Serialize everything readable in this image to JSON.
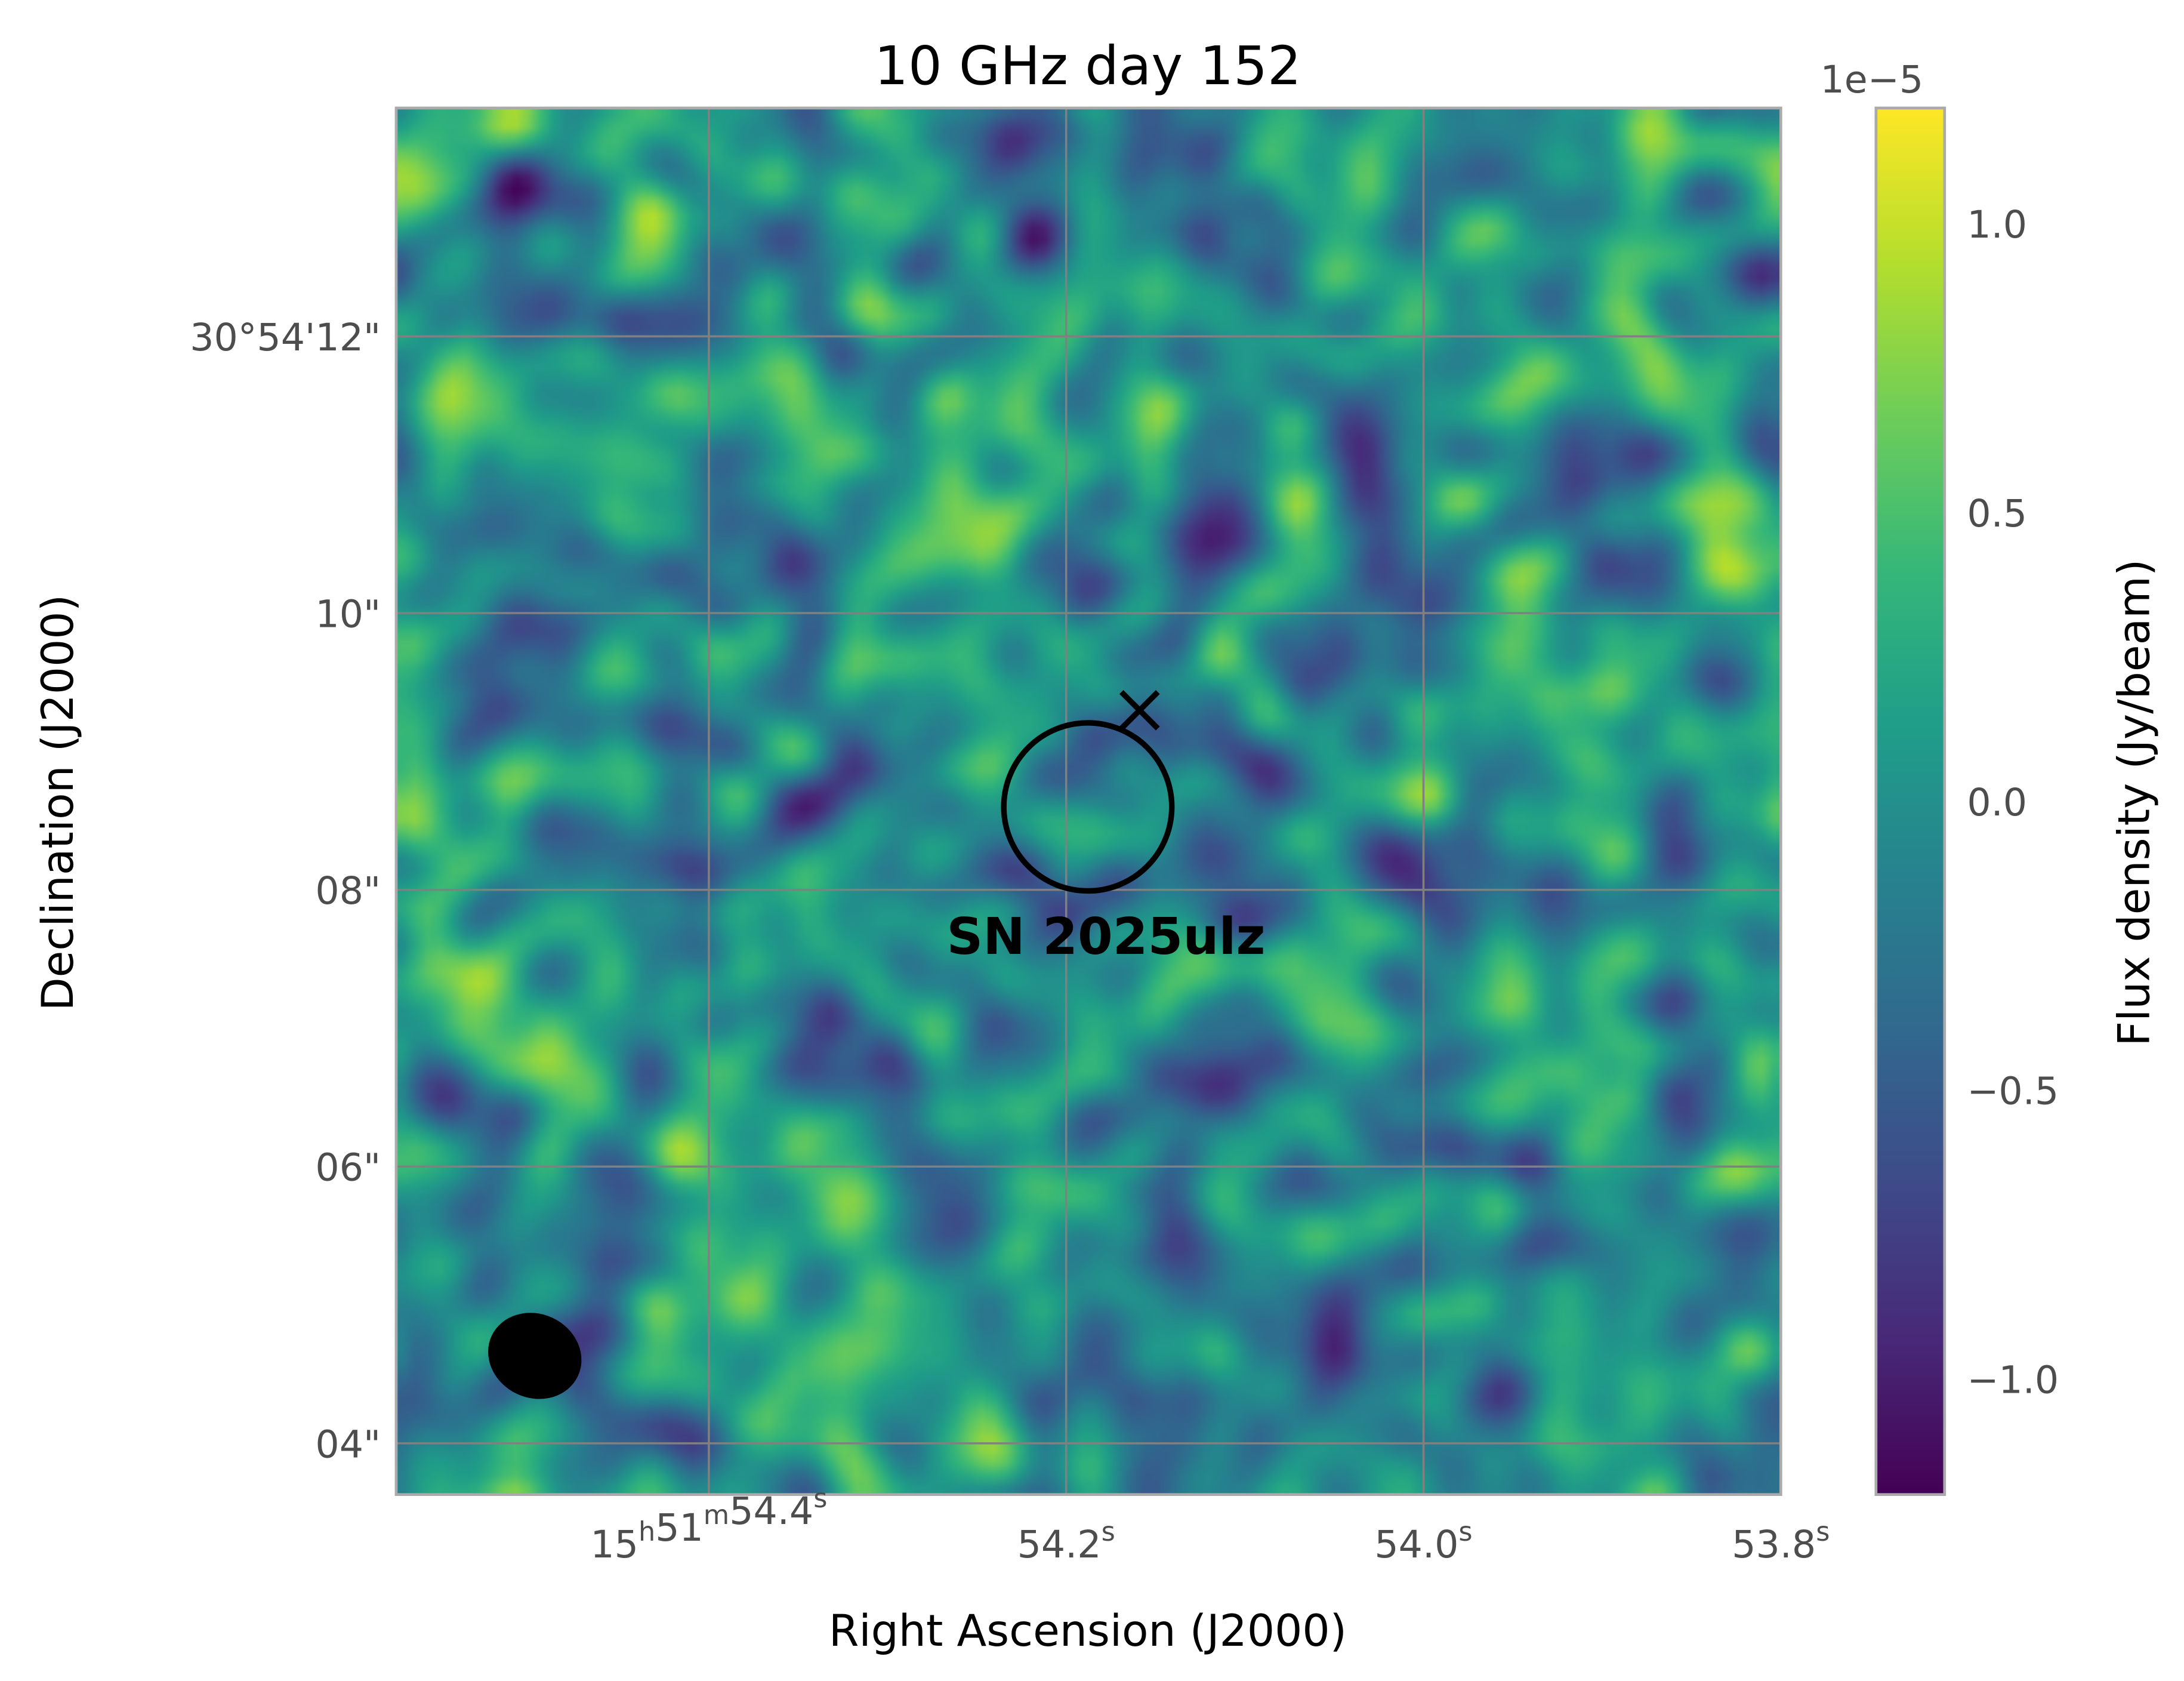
{
  "chart_data": {
    "type": "heatmap",
    "title": "10 GHz day 152",
    "xlabel": "Right Ascension (J2000)",
    "ylabel": "Declination (J2000)",
    "x_ticks": [
      {
        "value": 54.4,
        "label": "15",
        "parts": [
          [
            "15",
            "h"
          ],
          [
            "51",
            "m"
          ],
          [
            "54.4",
            "s"
          ]
        ]
      },
      {
        "value": 54.2,
        "parts": [
          [
            "54.2",
            "s"
          ]
        ]
      },
      {
        "value": 54.0,
        "parts": [
          [
            "54.0",
            "s"
          ]
        ]
      },
      {
        "value": 53.8,
        "parts": [
          [
            "53.8",
            "s"
          ]
        ]
      }
    ],
    "x_range_seconds": [
      54.575,
      53.8
    ],
    "y_ticks": [
      {
        "value": 12,
        "label": "30°54'12\""
      },
      {
        "value": 10,
        "label": "10\""
      },
      {
        "value": 8,
        "label": "08\""
      },
      {
        "value": 6,
        "label": "06\""
      },
      {
        "value": 4,
        "label": "04\""
      }
    ],
    "y_range_arcsec": [
      3.63,
      13.65
    ],
    "grid": true,
    "colormap": "viridis",
    "colorbar": {
      "label": "Flux density (Jy/beam)",
      "offset_text": "1e−5",
      "range": [
        -1.2,
        1.2
      ],
      "ticks": [
        {
          "value": 1.0,
          "label": "1.0"
        },
        {
          "value": 0.5,
          "label": "0.5"
        },
        {
          "value": 0.0,
          "label": "0.0"
        },
        {
          "value": -0.5,
          "label": "−0.5"
        },
        {
          "value": -1.0,
          "label": "−1.0"
        }
      ]
    },
    "annotations": {
      "source_label": "SN 2025ulz",
      "circle_center": {
        "ra_s": 54.188,
        "dec_arcsec": 8.6
      },
      "cross_marker": {
        "ra_s": 54.159,
        "dec_arcsec": 9.3
      },
      "beam": {
        "ra_s": 54.5,
        "dec_arcsec": 4.6
      }
    }
  }
}
